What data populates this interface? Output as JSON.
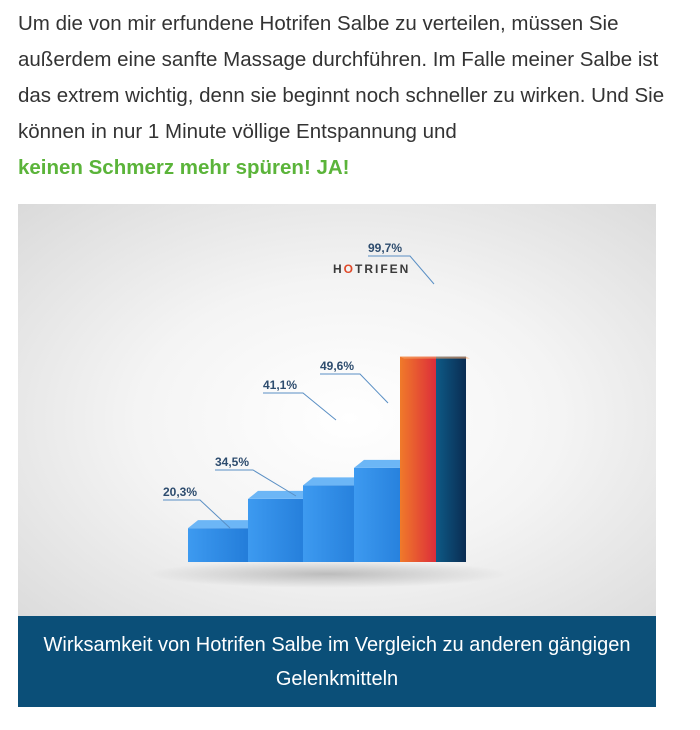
{
  "article": {
    "paragraph": "Um die von mir erfundene Hotrifen Salbe zu verteilen, müssen Sie außerdem eine sanfte Massage durchführen. Im Falle meiner Salbe ist das extrem wichtig, denn sie beginnt noch schneller zu wirken. Und Sie können in nur 1 Minute völlige Entspannung und",
    "highlight": "keinen Schmerz mehr spüren! JA!"
  },
  "chart_data": {
    "type": "bar",
    "categories": [
      "",
      "",
      "",
      "",
      "HOTRIFEN"
    ],
    "values": [
      20.3,
      34.5,
      41.1,
      49.6,
      99.7
    ],
    "value_labels": [
      "20,3%",
      "34,5%",
      "41,1%",
      "49,6%",
      "99,7%"
    ],
    "title": "",
    "xlabel": "",
    "ylabel": "",
    "ylim": [
      0,
      100
    ],
    "grid": false,
    "legend": "none",
    "colors": {
      "others": "#2a88e2",
      "hotrifen_front": "#e84a2f",
      "hotrifen_side": "#0c3d66",
      "label_line": "#5a8fc4",
      "logo_dark": "#3a3a3a",
      "logo_accent": "#e04a2a"
    }
  },
  "caption": "Wirksamkeit von Hotrifen Salbe im Vergleich zu anderen gängigen Gelenkmitteln"
}
